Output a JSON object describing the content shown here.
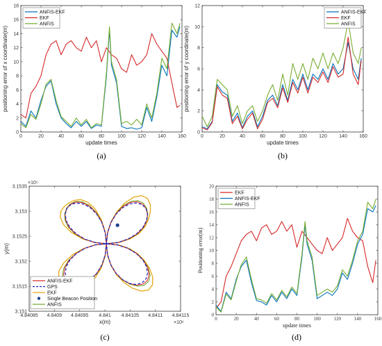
{
  "chart_data": [
    {
      "id": "a",
      "type": "line",
      "caption": "(a)",
      "xlabel": "update times",
      "ylabel": "positioning error of x coordinate(m)",
      "xlim": [
        0,
        160
      ],
      "ylim": [
        0,
        18
      ],
      "xticks": [
        0,
        20,
        40,
        60,
        80,
        100,
        120,
        140,
        160
      ],
      "yticks": [
        0,
        2,
        4,
        6,
        8,
        10,
        12,
        14,
        16,
        18
      ],
      "legend_position": "top-left",
      "series": [
        {
          "name": "ANFIS-EKF",
          "color": "#0072bd",
          "x": [
            0,
            5,
            10,
            15,
            20,
            25,
            30,
            35,
            40,
            45,
            50,
            55,
            60,
            65,
            70,
            75,
            80,
            85,
            88,
            90,
            95,
            100,
            105,
            110,
            115,
            120,
            125,
            130,
            135,
            140,
            145,
            150,
            155,
            158
          ],
          "y": [
            1.5,
            0.8,
            3.0,
            2.0,
            4.5,
            6.5,
            7.3,
            4.0,
            2.0,
            1.2,
            0.6,
            1.5,
            0.8,
            1.5,
            0.5,
            1.0,
            0.8,
            8.0,
            14.5,
            9.5,
            7.0,
            0.8,
            0.5,
            0.6,
            0.4,
            0.6,
            3.5,
            1.5,
            5.0,
            9.5,
            8.0,
            14.5,
            13.5,
            15.0
          ]
        },
        {
          "name": "EKF",
          "color": "#d62728",
          "x": [
            0,
            5,
            10,
            15,
            20,
            25,
            30,
            35,
            40,
            45,
            50,
            55,
            60,
            65,
            70,
            75,
            80,
            85,
            90,
            95,
            100,
            105,
            110,
            115,
            120,
            125,
            130,
            135,
            140,
            145,
            150,
            155,
            158
          ],
          "y": [
            2.5,
            2.0,
            5.5,
            6.5,
            8.0,
            11.0,
            12.5,
            13.0,
            11.0,
            12.5,
            13.0,
            12.0,
            11.5,
            13.5,
            12.0,
            13.0,
            10.0,
            12.0,
            11.0,
            10.5,
            9.0,
            8.5,
            11.0,
            9.5,
            10.0,
            11.0,
            14.0,
            12.5,
            11.5,
            10.5,
            7.0,
            3.5,
            3.8
          ]
        },
        {
          "name": "ANFIS",
          "color": "#77ac30",
          "x": [
            0,
            5,
            10,
            15,
            20,
            25,
            30,
            35,
            40,
            45,
            50,
            55,
            60,
            65,
            70,
            75,
            80,
            85,
            88,
            90,
            95,
            100,
            105,
            110,
            115,
            120,
            125,
            130,
            135,
            140,
            145,
            150,
            155,
            158
          ],
          "y": [
            1.2,
            0.6,
            2.5,
            1.8,
            4.0,
            6.8,
            7.5,
            4.5,
            2.2,
            1.5,
            0.8,
            2.0,
            1.0,
            1.8,
            0.6,
            1.2,
            1.0,
            8.5,
            15.0,
            10.0,
            7.5,
            1.2,
            1.5,
            1.0,
            1.8,
            1.0,
            4.0,
            2.0,
            5.5,
            10.5,
            9.0,
            15.5,
            14.0,
            15.5
          ]
        }
      ]
    },
    {
      "id": "b",
      "type": "line",
      "caption": "(b)",
      "xlabel": "update times",
      "ylabel": "positioning error of y coordinate(m)",
      "xlim": [
        0,
        160
      ],
      "ylim": [
        0,
        12
      ],
      "xticks": [
        0,
        20,
        40,
        60,
        80,
        100,
        120,
        140,
        160
      ],
      "yticks": [
        0,
        2,
        4,
        6,
        8,
        10,
        12
      ],
      "legend_position": "top-right",
      "series": [
        {
          "name": "ANFIS-EKF",
          "color": "#0072bd",
          "x": [
            0,
            5,
            10,
            15,
            20,
            25,
            30,
            35,
            40,
            45,
            50,
            55,
            60,
            65,
            70,
            75,
            80,
            85,
            90,
            95,
            100,
            105,
            110,
            115,
            120,
            125,
            130,
            135,
            140,
            145,
            150,
            155,
            158
          ],
          "y": [
            0.5,
            0.3,
            1.0,
            4.5,
            3.8,
            3.5,
            1.0,
            1.8,
            0.4,
            1.5,
            2.0,
            0.5,
            1.5,
            3.0,
            3.5,
            2.5,
            4.5,
            3.0,
            5.0,
            4.0,
            5.5,
            4.0,
            5.5,
            5.0,
            6.0,
            5.0,
            6.5,
            5.5,
            6.0,
            8.5,
            6.0,
            5.0,
            7.0
          ]
        },
        {
          "name": "EKF",
          "color": "#d62728",
          "x": [
            0,
            5,
            10,
            15,
            20,
            25,
            30,
            35,
            40,
            45,
            50,
            55,
            60,
            65,
            70,
            75,
            80,
            85,
            90,
            95,
            100,
            105,
            110,
            115,
            120,
            125,
            130,
            135,
            140,
            145,
            150,
            155,
            158
          ],
          "y": [
            0.4,
            0.2,
            0.9,
            4.3,
            3.5,
            3.2,
            0.8,
            1.5,
            0.3,
            1.2,
            1.8,
            0.3,
            1.2,
            2.8,
            3.2,
            2.3,
            4.2,
            2.8,
            4.7,
            3.7,
            5.2,
            3.7,
            5.2,
            4.7,
            5.7,
            4.7,
            6.2,
            5.2,
            5.5,
            9.0,
            5.5,
            4.5,
            6.8
          ]
        },
        {
          "name": "ANFIS",
          "color": "#77ac30",
          "x": [
            0,
            5,
            10,
            15,
            20,
            25,
            30,
            35,
            40,
            45,
            50,
            55,
            60,
            65,
            70,
            75,
            80,
            85,
            90,
            95,
            100,
            105,
            110,
            115,
            120,
            125,
            130,
            135,
            140,
            145,
            150,
            155,
            158
          ],
          "y": [
            1.5,
            0.5,
            1.5,
            5.0,
            4.5,
            4.0,
            1.5,
            2.5,
            0.8,
            2.0,
            2.5,
            1.0,
            2.0,
            3.5,
            4.5,
            3.0,
            5.5,
            3.5,
            6.5,
            5.0,
            6.5,
            5.0,
            7.0,
            6.0,
            7.5,
            6.0,
            7.5,
            6.5,
            8.0,
            10.5,
            7.5,
            6.5,
            8.0
          ]
        }
      ]
    },
    {
      "id": "c",
      "type": "line",
      "caption": "(c)",
      "xlabel": "x(m)",
      "ylabel": "y(m)",
      "x_multiplier": "×10⁶",
      "y_multiplier": "×10⁵",
      "xlim": [
        4.84085,
        4.84115
      ],
      "ylim": [
        3.151,
        3.1535
      ],
      "xticks": [
        4.84085,
        4.8409,
        4.84095,
        4.841,
        4.84105,
        4.8411,
        4.84115
      ],
      "yticks": [
        3.151,
        3.1515,
        3.152,
        3.1525,
        3.153,
        3.1535
      ],
      "legend_position": "bottom-left",
      "legend": [
        {
          "name": "ANFIS-EKF",
          "color": "#d62728",
          "style": "solid"
        },
        {
          "name": "GPS",
          "color": "#1f1fbf",
          "style": "dashed"
        },
        {
          "name": "EKF",
          "color": "#e6a817",
          "style": "solid"
        },
        {
          "name": "Single Beacon Position",
          "color": "#1f3f8f",
          "style": "marker"
        },
        {
          "name": "ANFIS",
          "color": "#77ac30",
          "style": "solid"
        }
      ],
      "beacon": {
        "x": 4.841025,
        "y": 3.15272
      }
    },
    {
      "id": "d",
      "type": "line",
      "caption": "(d)",
      "xlabel": "update times",
      "ylabel": "Positioning error(m)",
      "xlim": [
        0,
        160
      ],
      "ylim": [
        0,
        20
      ],
      "xticks": [
        0,
        20,
        40,
        60,
        80,
        100,
        120,
        140,
        160
      ],
      "yticks": [
        0,
        2,
        4,
        6,
        8,
        10,
        12,
        14,
        16,
        18,
        20
      ],
      "legend_position": "top-left",
      "series": [
        {
          "name": "EKF",
          "color": "#d62728",
          "x": [
            0,
            5,
            10,
            15,
            20,
            25,
            30,
            35,
            40,
            45,
            50,
            55,
            60,
            65,
            70,
            75,
            80,
            85,
            90,
            95,
            100,
            105,
            110,
            115,
            120,
            125,
            130,
            135,
            140,
            145,
            150,
            155,
            158
          ],
          "y": [
            1.0,
            2.0,
            6.0,
            7.5,
            9.5,
            11.5,
            12.5,
            13.0,
            11.5,
            13.5,
            14.0,
            12.5,
            13.0,
            14.5,
            13.0,
            14.0,
            10.5,
            13.0,
            12.0,
            11.0,
            10.0,
            9.5,
            12.0,
            10.0,
            11.0,
            12.0,
            15.0,
            13.0,
            12.0,
            11.5,
            7.5,
            5.0,
            8.5
          ]
        },
        {
          "name": "ANFIS-EKF",
          "color": "#0072bd",
          "x": [
            0,
            5,
            10,
            15,
            20,
            25,
            30,
            35,
            40,
            45,
            50,
            55,
            60,
            65,
            70,
            75,
            80,
            85,
            88,
            90,
            95,
            100,
            105,
            110,
            115,
            120,
            125,
            130,
            135,
            140,
            145,
            150,
            155,
            158
          ],
          "y": [
            1.5,
            0.5,
            3.5,
            2.5,
            5.5,
            7.5,
            8.5,
            5.0,
            2.2,
            2.0,
            1.5,
            3.0,
            2.0,
            3.5,
            2.5,
            4.0,
            3.0,
            9.0,
            14.0,
            11.0,
            8.5,
            2.5,
            3.0,
            3.5,
            3.0,
            4.0,
            6.5,
            5.5,
            8.0,
            11.0,
            12.5,
            16.5,
            16.0,
            17.0
          ]
        },
        {
          "name": "ANFIS",
          "color": "#77ac30",
          "x": [
            0,
            5,
            10,
            15,
            20,
            25,
            30,
            35,
            40,
            45,
            50,
            55,
            60,
            65,
            70,
            75,
            80,
            85,
            88,
            90,
            95,
            100,
            105,
            110,
            115,
            120,
            125,
            130,
            135,
            140,
            145,
            150,
            155,
            158
          ],
          "y": [
            1.2,
            0.4,
            3.2,
            2.3,
            5.2,
            7.8,
            9.0,
            5.5,
            2.5,
            2.3,
            1.8,
            3.3,
            2.3,
            3.8,
            2.8,
            4.3,
            3.3,
            9.5,
            14.5,
            11.5,
            9.0,
            3.0,
            3.5,
            4.0,
            3.5,
            4.5,
            7.0,
            6.0,
            8.5,
            11.5,
            13.0,
            17.5,
            16.5,
            18.0
          ]
        }
      ]
    }
  ]
}
